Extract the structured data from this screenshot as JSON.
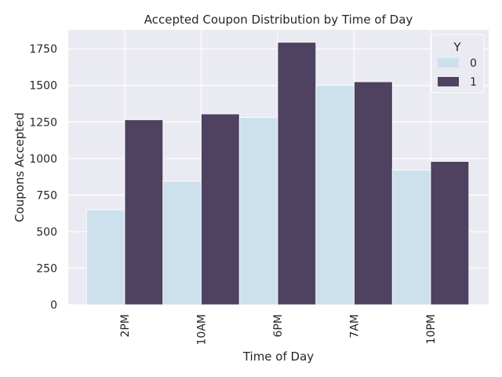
{
  "chart_data": {
    "type": "bar",
    "title": "Accepted Coupon Distribution by Time of Day",
    "xlabel": "Time of Day",
    "ylabel": "Coupons Accepted",
    "categories": [
      "2PM",
      "10AM",
      "6PM",
      "7AM",
      "10PM"
    ],
    "series": [
      {
        "name": "0",
        "values": [
          650,
          845,
          1280,
          1500,
          920
        ],
        "color": "#cde0ed"
      },
      {
        "name": "1",
        "values": [
          1265,
          1305,
          1795,
          1525,
          980
        ],
        "color": "#4e4260"
      }
    ],
    "ylim": [
      0,
      1880
    ],
    "yticks": [
      0,
      250,
      500,
      750,
      1000,
      1250,
      1500,
      1750
    ],
    "grid": true,
    "legend": {
      "title": "Y",
      "position": "top-right"
    },
    "colors": {
      "background": "#eaeaf2",
      "grid": "#ffffff"
    }
  }
}
